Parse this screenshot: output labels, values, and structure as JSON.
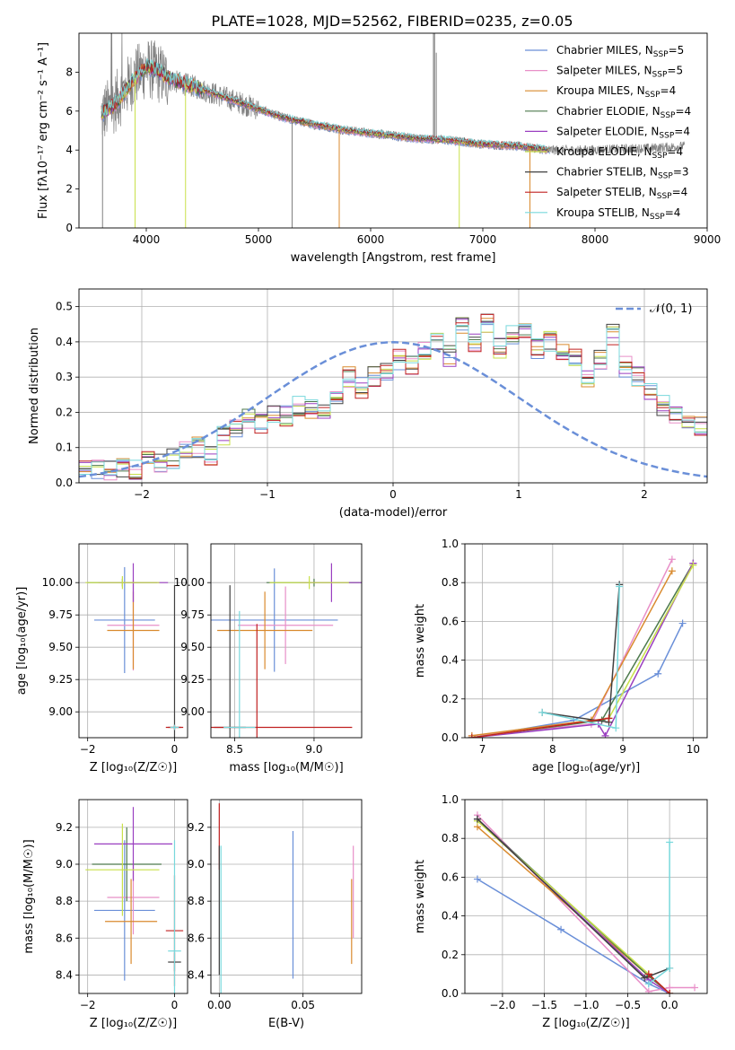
{
  "figure_title": "PLATE=1028, MJD=52562, FIBERID=0235, z=0.05",
  "colors": {
    "axis": "#000000",
    "grid": "#b0b0b0",
    "spectrum": "#808080"
  },
  "series": [
    {
      "name": "Chabrier MILES",
      "nssp": "5",
      "color": "#6a8fd8"
    },
    {
      "name": "Salpeter MILES",
      "nssp": "5",
      "color": "#e88fc8"
    },
    {
      "name": "Kroupa MILES",
      "nssp": "4",
      "color": "#d98a2e"
    },
    {
      "name": "Chabrier ELODIE",
      "nssp": "4",
      "color": "#4d7a4d"
    },
    {
      "name": "Salpeter ELODIE",
      "nssp": "4",
      "color": "#9a3fc0"
    },
    {
      "name": "Kroupa ELODIE",
      "nssp": "4",
      "color": "#c8e04a"
    },
    {
      "name": "Chabrier STELIB",
      "nssp": "3",
      "color": "#404040"
    },
    {
      "name": "Salpeter STELIB",
      "nssp": "4",
      "color": "#c02020"
    },
    {
      "name": "Kroupa STELIB",
      "nssp": "4",
      "color": "#78d8dc"
    }
  ],
  "chart_data": [
    {
      "id": "spectrum",
      "type": "line",
      "title": "PLATE=1028, MJD=52562, FIBERID=0235, z=0.05",
      "xlabel": "wavelength [Angstrom, rest frame]",
      "ylabel": "Flux [fλ10⁻¹⁷ erg cm⁻² s⁻¹ A⁻¹]",
      "xlim": [
        3400,
        9000
      ],
      "ylim": [
        0,
        10
      ],
      "xticks": [
        "4000",
        "5000",
        "6000",
        "7000",
        "8000",
        "9000"
      ],
      "yticks": [
        "0",
        "2",
        "4",
        "6",
        "8"
      ],
      "grid": false,
      "legend": "top-right",
      "data_continuum": {
        "x": [
          3600,
          3700,
          3800,
          3900,
          4000,
          4100,
          4200,
          4400,
          4600,
          4800,
          5000,
          5200,
          5500,
          5800,
          6100,
          6400,
          6700,
          7000,
          7300,
          7600,
          7900,
          8200,
          8500,
          8800
        ],
        "y": [
          5.8,
          6.3,
          7.0,
          7.8,
          8.2,
          8.0,
          7.6,
          7.3,
          6.9,
          6.5,
          6.1,
          5.7,
          5.3,
          5.0,
          4.8,
          4.6,
          4.5,
          4.3,
          4.2,
          4.0,
          4.0,
          4.05,
          4.1,
          4.2
        ]
      },
      "model_continuum": {
        "x": [
          3600,
          3700,
          3800,
          3900,
          4000,
          4100,
          4200,
          4400,
          4600,
          4800,
          5000,
          5200,
          5500,
          5800,
          6100,
          6400,
          6700,
          7000,
          7300,
          7600
        ],
        "y": [
          5.9,
          6.2,
          6.9,
          7.7,
          8.3,
          8.1,
          7.7,
          7.3,
          6.9,
          6.5,
          6.1,
          5.7,
          5.3,
          5.0,
          4.8,
          4.6,
          4.5,
          4.3,
          4.2,
          4.0
        ]
      }
    },
    {
      "id": "residuals",
      "type": "line",
      "xlabel": "(data-model)/error",
      "ylabel": "Normed distribution",
      "xlim": [
        -2.5,
        2.5
      ],
      "ylim": [
        0,
        0.55
      ],
      "xticks": [
        "−2",
        "−1",
        "0",
        "1",
        "2"
      ],
      "yticks": [
        "0.0",
        "0.1",
        "0.2",
        "0.3",
        "0.4",
        "0.5"
      ],
      "grid": true,
      "legend": "top-right",
      "legend_label": "𝒩(0, 1)",
      "bin_width": 0.1,
      "bin_start": -2.5,
      "hist_shape": [
        0.035,
        0.04,
        0.035,
        0.045,
        0.04,
        0.06,
        0.06,
        0.07,
        0.095,
        0.1,
        0.08,
        0.13,
        0.15,
        0.18,
        0.17,
        0.2,
        0.19,
        0.22,
        0.21,
        0.2,
        0.25,
        0.3,
        0.27,
        0.3,
        0.32,
        0.35,
        0.33,
        0.37,
        0.4,
        0.36,
        0.44,
        0.4,
        0.45,
        0.38,
        0.42,
        0.43,
        0.38,
        0.4,
        0.37,
        0.36,
        0.3,
        0.35,
        0.42,
        0.33,
        0.3,
        0.26,
        0.22,
        0.2,
        0.18,
        0.16,
        0.15,
        0.13,
        0.12,
        0.1,
        0.08,
        0.09,
        0.07,
        0.07,
        0.05,
        0.06,
        0.05,
        0.05,
        0.06,
        0.05,
        0.04,
        0.03,
        0.02
      ]
    },
    {
      "id": "age_vs_Z",
      "type": "scatter",
      "xlabel": "Z [log₁₀(Z/Z☉)]",
      "ylabel": "age  [log₁₀(age/yr)]",
      "xlim": [
        -2.2,
        0.3
      ],
      "ylim": [
        8.8,
        10.3
      ],
      "xticks": [
        "−2",
        "0"
      ],
      "yticks": [
        "9.00",
        "9.25",
        "9.50",
        "9.75",
        "10.00"
      ],
      "grid": true,
      "points": [
        {
          "series": 0,
          "x": -1.15,
          "y": 9.71,
          "xerr": 0.7,
          "yerr": 0.41
        },
        {
          "series": 1,
          "x": -0.95,
          "y": 9.67,
          "xerr": 0.6,
          "yerr": 0.35
        },
        {
          "series": 2,
          "x": -0.95,
          "y": 9.63,
          "xerr": 0.6,
          "yerr": 0.3
        },
        {
          "series": 3,
          "x": -1.2,
          "y": 10.0,
          "xerr": 0.8,
          "yerr": 0.03
        },
        {
          "series": 4,
          "x": -0.95,
          "y": 10.0,
          "xerr": 0.8,
          "yerr": 0.15
        },
        {
          "series": 5,
          "x": -1.2,
          "y": 10.0,
          "xerr": 0.85,
          "yerr": 0.05
        },
        {
          "series": 6,
          "x": 0.0,
          "y": 8.88,
          "xerr": 0.15,
          "yerr": 1.1
        },
        {
          "series": 7,
          "x": 0.0,
          "y": 8.88,
          "xerr": 0.2,
          "yerr": 0.02
        },
        {
          "series": 8,
          "x": 0.0,
          "y": 8.88,
          "xerr": 0.1,
          "yerr": 0.02
        }
      ]
    },
    {
      "id": "age_vs_mass",
      "type": "scatter",
      "xlabel": "mass [log₁₀(M/M☉)]",
      "xlim": [
        8.35,
        9.3
      ],
      "ylim": [
        8.8,
        10.3
      ],
      "xticks": [
        "8.5",
        "9.0"
      ],
      "yticks": [
        "9.00",
        "9.25",
        "9.50",
        "9.75",
        "10.00"
      ],
      "grid": true,
      "points": [
        {
          "series": 0,
          "x": 8.75,
          "y": 9.71,
          "xerr": 0.4,
          "yerr": 0.4
        },
        {
          "series": 1,
          "x": 8.82,
          "y": 9.67,
          "xerr": 0.3,
          "yerr": 0.3
        },
        {
          "series": 2,
          "x": 8.69,
          "y": 9.63,
          "xerr": 0.3,
          "yerr": 0.3
        },
        {
          "series": 3,
          "x": 9.0,
          "y": 10.0,
          "xerr": 0.3,
          "yerr": 0.03
        },
        {
          "series": 4,
          "x": 9.11,
          "y": 10.0,
          "xerr": 0.2,
          "yerr": 0.15
        },
        {
          "series": 5,
          "x": 8.97,
          "y": 10.0,
          "xerr": 0.25,
          "yerr": 0.05
        },
        {
          "series": 6,
          "x": 8.47,
          "y": 8.88,
          "xerr": 0.1,
          "yerr": 1.1
        },
        {
          "series": 7,
          "x": 8.64,
          "y": 8.88,
          "xerr": 0.6,
          "yerr": 0.8
        },
        {
          "series": 8,
          "x": 8.53,
          "y": 8.88,
          "xerr": 0.1,
          "yerr": 0.9
        }
      ]
    },
    {
      "id": "massweight_vs_age",
      "type": "line",
      "xlabel": "age  [log₁₀(age/yr)]",
      "ylabel": "mass weight",
      "xlim": [
        6.75,
        10.2
      ],
      "ylim": [
        0,
        1.0
      ],
      "xticks": [
        "7",
        "8",
        "9",
        "10"
      ],
      "yticks": [
        "0.0",
        "0.2",
        "0.4",
        "0.6",
        "0.8",
        "1.0"
      ],
      "grid": true,
      "lines": [
        {
          "series": 0,
          "x": [
            6.85,
            8.3,
            9.5,
            9.85
          ],
          "y": [
            0.0,
            0.09,
            0.33,
            0.59
          ]
        },
        {
          "series": 1,
          "x": [
            6.85,
            8.55,
            9.7
          ],
          "y": [
            0.01,
            0.07,
            0.92
          ]
        },
        {
          "series": 2,
          "x": [
            6.85,
            8.55,
            9.7
          ],
          "y": [
            0.01,
            0.09,
            0.86
          ]
        },
        {
          "series": 3,
          "x": [
            6.85,
            8.7,
            10.0
          ],
          "y": [
            0.0,
            0.09,
            0.9
          ]
        },
        {
          "series": 4,
          "x": [
            6.85,
            8.65,
            8.75,
            10.0
          ],
          "y": [
            0.0,
            0.07,
            0.01,
            0.9
          ]
        },
        {
          "series": 5,
          "x": [
            6.85,
            8.8,
            10.0
          ],
          "y": [
            0.0,
            0.1,
            0.89
          ]
        },
        {
          "series": 6,
          "x": [
            7.85,
            8.8,
            8.95
          ],
          "y": [
            0.13,
            0.08,
            0.79
          ]
        },
        {
          "series": 7,
          "x": [
            6.85,
            8.8
          ],
          "y": [
            0.0,
            0.1
          ]
        },
        {
          "series": 8,
          "x": [
            7.85,
            8.9,
            8.95
          ],
          "y": [
            0.13,
            0.05,
            0.78
          ]
        }
      ]
    },
    {
      "id": "mass_vs_Z",
      "type": "scatter",
      "xlabel": "Z [log₁₀(Z/Z☉)]",
      "ylabel": "mass [log₁₀(M/M☉)]",
      "xlim": [
        -2.2,
        0.3
      ],
      "ylim": [
        8.3,
        9.35
      ],
      "xticks": [
        "−2",
        "0"
      ],
      "yticks": [
        "8.4",
        "8.6",
        "8.8",
        "9.0",
        "9.2"
      ],
      "grid": true,
      "points": [
        {
          "series": 0,
          "x": -1.15,
          "y": 8.75,
          "xerr": 0.7,
          "yerr": 0.38
        },
        {
          "series": 1,
          "x": -0.95,
          "y": 8.82,
          "xerr": 0.6,
          "yerr": 0.2
        },
        {
          "series": 2,
          "x": -1.0,
          "y": 8.69,
          "xerr": 0.6,
          "yerr": 0.23
        },
        {
          "series": 3,
          "x": -1.1,
          "y": 9.0,
          "xerr": 0.8,
          "yerr": 0.2
        },
        {
          "series": 4,
          "x": -0.95,
          "y": 9.11,
          "xerr": 0.9,
          "yerr": 0.2
        },
        {
          "series": 5,
          "x": -1.2,
          "y": 8.97,
          "xerr": 0.85,
          "yerr": 0.25
        },
        {
          "series": 6,
          "x": 0.0,
          "y": 8.47,
          "xerr": 0.15,
          "yerr": 0.05
        },
        {
          "series": 7,
          "x": 0.0,
          "y": 8.64,
          "xerr": 0.2,
          "yerr": 0.3
        },
        {
          "series": 8,
          "x": 0.0,
          "y": 8.53,
          "xerr": 0.15,
          "yerr": 0.6
        }
      ]
    },
    {
      "id": "mass_vs_ebv",
      "type": "scatter",
      "xlabel": "E(B-V)",
      "xlim": [
        -0.005,
        0.085
      ],
      "ylim": [
        8.3,
        9.35
      ],
      "xticks": [
        "0.00",
        "0.05"
      ],
      "yticks": [
        "8.4",
        "8.6",
        "8.8",
        "9.0",
        "9.2"
      ],
      "grid": true,
      "points": [
        {
          "series": 0,
          "x": 0.044,
          "y": 8.78,
          "yerr": 0.4
        },
        {
          "series": 2,
          "x": 0.079,
          "y": 8.69,
          "yerr": 0.23
        },
        {
          "series": 1,
          "x": 0.08,
          "y": 8.85,
          "yerr": 0.25
        },
        {
          "series": 7,
          "x": 0.0,
          "y": 9.15,
          "yerr": 0.18
        },
        {
          "series": 6,
          "x": 0.0,
          "y": 8.75,
          "yerr": 0.35
        },
        {
          "series": 8,
          "x": 0.001,
          "y": 8.6,
          "yerr": 0.5
        }
      ]
    },
    {
      "id": "massweight_vs_Z",
      "type": "line",
      "xlabel": "Z [log₁₀(Z/Z☉)]",
      "ylabel": "mass weight",
      "xlim": [
        -2.45,
        0.45
      ],
      "ylim": [
        0,
        1.0
      ],
      "xticks": [
        "−2.0",
        "−1.5",
        "−1.0",
        "−0.5",
        "0.0"
      ],
      "yticks": [
        "0.0",
        "0.2",
        "0.4",
        "0.6",
        "0.8",
        "1.0"
      ],
      "grid": true,
      "lines": [
        {
          "series": 0,
          "x": [
            -2.3,
            -1.3,
            -0.25,
            0.0
          ],
          "y": [
            0.59,
            0.33,
            0.05,
            0.0
          ]
        },
        {
          "series": 1,
          "x": [
            -2.3,
            -0.25,
            0.0,
            0.3
          ],
          "y": [
            0.92,
            0.01,
            0.03,
            0.03
          ]
        },
        {
          "series": 2,
          "x": [
            -2.3,
            -0.25,
            0.0
          ],
          "y": [
            0.86,
            0.09,
            0.0
          ]
        },
        {
          "series": 3,
          "x": [
            -2.3,
            -0.25,
            0.0
          ],
          "y": [
            0.9,
            0.09,
            0.0
          ]
        },
        {
          "series": 4,
          "x": [
            -2.3,
            -0.25,
            0.0
          ],
          "y": [
            0.9,
            0.07,
            0.0
          ]
        },
        {
          "series": 5,
          "x": [
            -2.3,
            -0.25,
            0.0
          ],
          "y": [
            0.89,
            0.1,
            0.0
          ]
        },
        {
          "series": 6,
          "x": [
            -2.3,
            -0.3,
            0.0
          ],
          "y": [
            0.9,
            0.08,
            0.13
          ]
        },
        {
          "series": 7,
          "x": [
            -0.25,
            0.0
          ],
          "y": [
            0.1,
            0.0
          ]
        },
        {
          "series": 8,
          "x": [
            -0.25,
            0.0,
            0.0
          ],
          "y": [
            0.05,
            0.13,
            0.78
          ]
        }
      ]
    }
  ]
}
